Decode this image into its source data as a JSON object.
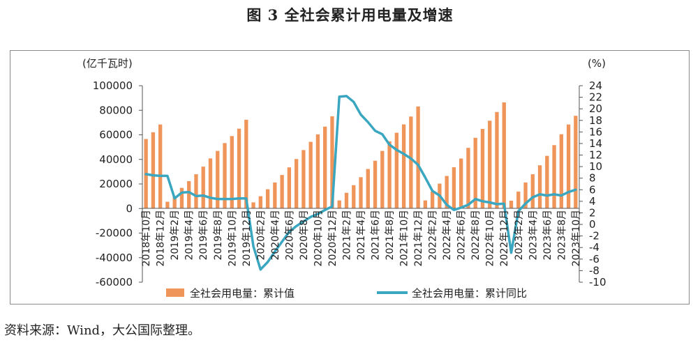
{
  "title": "图 3  全社会累计用电量及增速",
  "source": "资料来源：Wind，大公国际整理。",
  "chart_data": {
    "type": "bar+line",
    "left_axis_unit": "(亿千瓦时)",
    "right_axis_unit": "(%)",
    "left_ylim": [
      -60000,
      100000
    ],
    "left_ticks": [
      100000,
      80000,
      60000,
      40000,
      20000,
      0,
      -20000,
      -40000,
      -60000
    ],
    "right_ylim": [
      -10,
      24
    ],
    "right_ticks": [
      24,
      22,
      20,
      18,
      16,
      14,
      12,
      10,
      8,
      6,
      4,
      2,
      0,
      -2,
      -4,
      -6,
      -8,
      -10
    ],
    "categories": [
      "2018年10月",
      "2018年11月",
      "2018年12月",
      "2019年1月",
      "2019年2月",
      "2019年3月",
      "2019年4月",
      "2019年5月",
      "2019年6月",
      "2019年7月",
      "2019年8月",
      "2019年9月",
      "2019年10月",
      "2019年11月",
      "2019年12月",
      "2020年1月",
      "2020年2月",
      "2020年3月",
      "2020年4月",
      "2020年5月",
      "2020年6月",
      "2020年7月",
      "2020年8月",
      "2020年9月",
      "2020年10月",
      "2020年11月",
      "2020年12月",
      "2021年1月",
      "2021年2月",
      "2021年3月",
      "2021年4月",
      "2021年5月",
      "2021年6月",
      "2021年7月",
      "2021年8月",
      "2021年9月",
      "2021年10月",
      "2021年11月",
      "2021年12月",
      "2022年1月",
      "2022年2月",
      "2022年3月",
      "2022年4月",
      "2022年5月",
      "2022年6月",
      "2022年7月",
      "2022年8月",
      "2022年9月",
      "2022年10月",
      "2022年11月",
      "2022年12月",
      "2023年1月",
      "2023年2月",
      "2023年3月",
      "2023年4月",
      "2023年5月",
      "2023年6月",
      "2023年7月",
      "2023年8月",
      "2023年9月",
      "2023年10月"
    ],
    "x_tick_labels": [
      "2018年10月",
      "2018年12月",
      "2019年2月",
      "2019年4月",
      "2019年6月",
      "2019年8月",
      "2019年10月",
      "2019年12月",
      "2020年2月",
      "2020年4月",
      "2020年6月",
      "2020年8月",
      "2020年10月",
      "2020年12月",
      "2021年2月",
      "2021年4月",
      "2021年6月",
      "2021年8月",
      "2021年10月",
      "2021年12月",
      "2022年2月",
      "2022年4月",
      "2022年6月",
      "2022年8月",
      "2022年10月",
      "2022年12月",
      "2023年2月",
      "2023年4月",
      "2023年6月",
      "2023年8月",
      "2023年10月"
    ],
    "series": [
      {
        "name": "全社会用电量：累计值",
        "type": "bar",
        "axis": "left",
        "color": "#F0955A",
        "values": [
          56600,
          62100,
          68400,
          5500,
          10100,
          16800,
          22300,
          27900,
          34100,
          40800,
          46900,
          53300,
          59000,
          65000,
          72300,
          5000,
          10000,
          15700,
          21200,
          27300,
          33500,
          40300,
          47600,
          54300,
          60400,
          66700,
          75100,
          6600,
          12800,
          19000,
          25500,
          32200,
          38900,
          46900,
          54700,
          61700,
          68500,
          74900,
          83100,
          6600,
          13800,
          20300,
          26500,
          33600,
          40700,
          49400,
          57600,
          64800,
          71500,
          78600,
          86400,
          6400,
          13800,
          21200,
          27900,
          35200,
          42900,
          51600,
          60500,
          68400,
          75500
        ]
      },
      {
        "name": "全社会用电量：累计同比",
        "type": "line",
        "axis": "right",
        "color": "#3AA6BF",
        "values": [
          8.7,
          8.5,
          8.4,
          8.4,
          4.5,
          5.5,
          5.6,
          4.9,
          5.0,
          4.6,
          4.4,
          4.4,
          4.4,
          4.5,
          4.5,
          -3.8,
          -7.8,
          -6.5,
          -4.7,
          -3.0,
          -1.3,
          -0.3,
          0.5,
          1.3,
          1.8,
          2.5,
          3.1,
          22.1,
          22.2,
          21.2,
          19.0,
          17.7,
          16.2,
          15.6,
          13.8,
          12.9,
          12.2,
          11.4,
          10.3,
          8.1,
          5.8,
          5.0,
          3.4,
          2.5,
          2.9,
          3.4,
          4.4,
          4.0,
          3.8,
          3.5,
          3.6,
          -4.9,
          2.3,
          3.6,
          4.7,
          5.2,
          5.0,
          5.2,
          5.0,
          5.6,
          6.0
        ]
      }
    ],
    "legend_position": "bottom",
    "grid": false
  }
}
